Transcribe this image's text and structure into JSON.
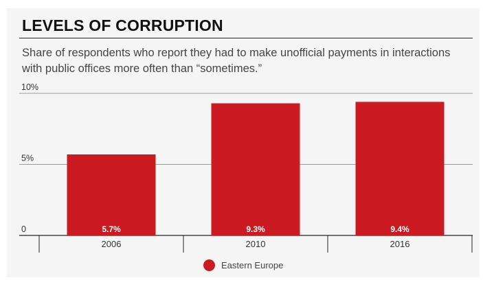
{
  "chart_data": {
    "type": "bar",
    "title": "LEVELS OF CORRUPTION",
    "subtitle": "Share of respondents who report they had to make unofficial payments in interactions with public offices more often than “sometimes.”",
    "categories": [
      "2006",
      "2010",
      "2016"
    ],
    "series": [
      {
        "name": "Eastern Europe",
        "values": [
          5.7,
          9.3,
          9.4
        ],
        "labels": [
          "5.7%",
          "9.3%",
          "9.4%"
        ],
        "color": "#cc1a22"
      }
    ],
    "ylim": [
      0,
      10
    ],
    "yticks": [
      {
        "value": 0,
        "label": "0"
      },
      {
        "value": 5,
        "label": "5%"
      },
      {
        "value": 10,
        "label": "10%"
      }
    ],
    "grid": true,
    "legend_position": "bottom-center"
  }
}
